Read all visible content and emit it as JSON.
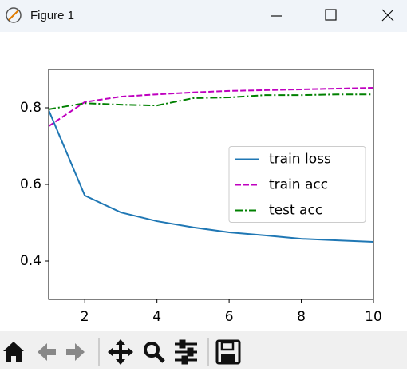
{
  "window": {
    "title": "Figure 1"
  },
  "chart_data": {
    "type": "line",
    "x": [
      1,
      2,
      3,
      4,
      5,
      6,
      7,
      8,
      9,
      10
    ],
    "series": [
      {
        "name": "train loss",
        "color": "#1f77b4",
        "linestyle": "solid",
        "values": [
          0.794,
          0.571,
          0.527,
          0.504,
          0.488,
          0.475,
          0.467,
          0.458,
          0.454,
          0.45
        ]
      },
      {
        "name": "train acc",
        "color": "#bf00bf",
        "linestyle": "dashed",
        "values": [
          0.752,
          0.815,
          0.829,
          0.835,
          0.84,
          0.844,
          0.846,
          0.848,
          0.85,
          0.852
        ]
      },
      {
        "name": "test acc",
        "color": "#008000",
        "linestyle": "dashdot",
        "values": [
          0.796,
          0.812,
          0.808,
          0.806,
          0.825,
          0.827,
          0.833,
          0.833,
          0.835,
          0.835
        ]
      }
    ],
    "xlim": [
      1,
      10
    ],
    "xticks": [
      2,
      4,
      6,
      8,
      10
    ],
    "ylim": [
      0.3,
      0.9
    ],
    "yticks": [
      0.4,
      0.6,
      0.8
    ],
    "grid": false,
    "legend": "center right"
  }
}
